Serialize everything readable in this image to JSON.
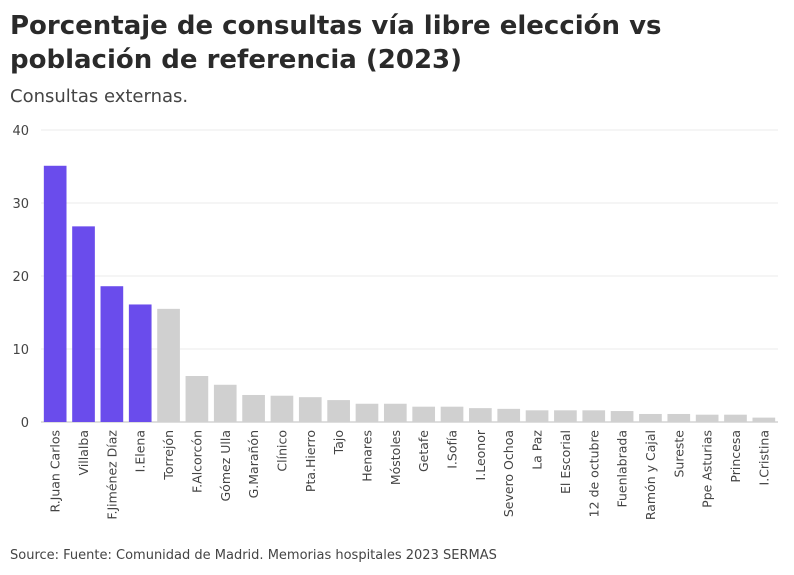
{
  "chart_data": {
    "type": "bar",
    "title": "Porcentaje de consultas vía libre elección vs población de referencia (2023)",
    "subtitle": "Consultas externas.",
    "source": "Source: Fuente: Comunidad de Madrid. Memorias hospitales 2023 SERMAS",
    "ylim": [
      0,
      40
    ],
    "yticks": [
      0,
      10,
      20,
      30,
      40
    ],
    "grid": true,
    "colors": {
      "highlight": "#6a4cec",
      "default": "#d0d0d0"
    },
    "categories": [
      "R.Juan Carlos",
      "Villalba",
      "F.Jiménez Díaz",
      "I.Elena",
      "Torrejón",
      "F.Alcorcón",
      "Gómez Ulla",
      "G.Marañón",
      "Clínico",
      "Pta.Hierro",
      "Tajo",
      "Henares",
      "Móstoles",
      "Getafe",
      "I.Sofía",
      "I.Leonor",
      "Severo Ochoa",
      "La Paz",
      "El Escorial",
      "12 de octubre",
      "Fuenlabrada",
      "Ramón y Cajal",
      "Sureste",
      "Ppe Asturias",
      "Princesa",
      "I.Cristina"
    ],
    "values": [
      35.1,
      26.8,
      18.6,
      16.1,
      15.5,
      6.3,
      5.1,
      3.7,
      3.6,
      3.4,
      3.0,
      2.5,
      2.5,
      2.1,
      2.1,
      1.9,
      1.8,
      1.6,
      1.6,
      1.6,
      1.5,
      1.1,
      1.1,
      1.0,
      1.0,
      0.6
    ],
    "highlighted": [
      true,
      true,
      true,
      true,
      false,
      false,
      false,
      false,
      false,
      false,
      false,
      false,
      false,
      false,
      false,
      false,
      false,
      false,
      false,
      false,
      false,
      false,
      false,
      false,
      false,
      false
    ]
  }
}
